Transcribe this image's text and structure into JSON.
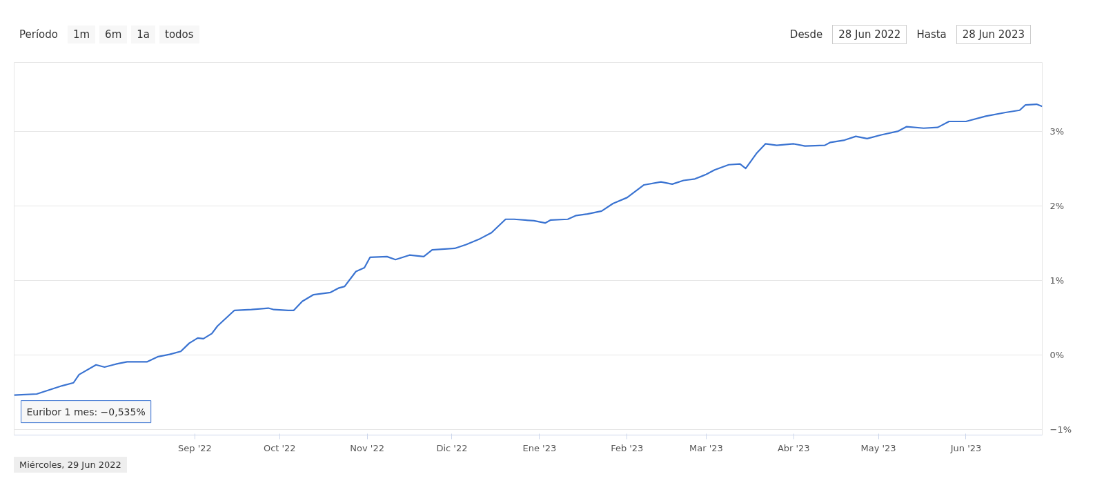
{
  "chart_data": {
    "type": "line",
    "x": [
      "2022-06-29",
      "2022-07-07",
      "2022-07-16",
      "2022-07-20",
      "2022-07-22",
      "2022-07-28",
      "2022-07-31",
      "2022-08-04",
      "2022-08-08",
      "2022-08-15",
      "2022-08-19",
      "2022-08-23",
      "2022-08-27",
      "2022-08-30",
      "2022-09-02",
      "2022-09-04",
      "2022-09-07",
      "2022-09-09",
      "2022-09-15",
      "2022-09-21",
      "2022-09-27",
      "2022-09-29",
      "2022-10-04",
      "2022-10-06",
      "2022-10-09",
      "2022-10-13",
      "2022-10-19",
      "2022-10-22",
      "2022-10-24",
      "2022-10-28",
      "2022-10-31",
      "2022-11-02",
      "2022-11-08",
      "2022-11-11",
      "2022-11-16",
      "2022-11-21",
      "2022-11-24",
      "2022-12-02",
      "2022-12-06",
      "2022-12-11",
      "2022-12-15",
      "2022-12-20",
      "2022-12-23",
      "2022-12-30",
      "2023-01-03",
      "2023-01-05",
      "2023-01-11",
      "2023-01-14",
      "2023-01-18",
      "2023-01-23",
      "2023-01-27",
      "2023-02-01",
      "2023-02-07",
      "2023-02-13",
      "2023-02-17",
      "2023-02-21",
      "2023-02-25",
      "2023-03-01",
      "2023-03-04",
      "2023-03-09",
      "2023-03-13",
      "2023-03-15",
      "2023-03-19",
      "2023-03-22",
      "2023-03-26",
      "2023-04-01",
      "2023-04-05",
      "2023-04-12",
      "2023-04-14",
      "2023-04-19",
      "2023-04-23",
      "2023-04-27",
      "2023-05-02",
      "2023-05-08",
      "2023-05-11",
      "2023-05-17",
      "2023-05-22",
      "2023-05-26",
      "2023-06-01",
      "2023-06-08",
      "2023-06-15",
      "2023-06-20",
      "2023-06-22",
      "2023-06-26",
      "2023-06-28"
    ],
    "series": [
      {
        "color": "#3a73d1",
        "values": [
          -0.535,
          -0.52,
          -0.41,
          -0.37,
          -0.26,
          -0.13,
          -0.16,
          -0.12,
          -0.09,
          -0.09,
          -0.02,
          0.01,
          0.05,
          0.16,
          0.23,
          0.22,
          0.29,
          0.39,
          0.6,
          0.61,
          0.63,
          0.61,
          0.6,
          0.6,
          0.72,
          0.81,
          0.84,
          0.9,
          0.92,
          1.12,
          1.17,
          1.31,
          1.32,
          1.28,
          1.34,
          1.32,
          1.41,
          1.43,
          1.48,
          1.56,
          1.64,
          1.82,
          1.82,
          1.8,
          1.77,
          1.81,
          1.82,
          1.87,
          1.89,
          1.93,
          2.03,
          2.11,
          2.28,
          2.32,
          2.29,
          2.34,
          2.36,
          2.42,
          2.48,
          2.55,
          2.56,
          2.5,
          2.71,
          2.83,
          2.81,
          2.83,
          2.8,
          2.81,
          2.85,
          2.88,
          2.93,
          2.9,
          2.95,
          3.0,
          3.06,
          3.04,
          3.05,
          3.13,
          3.13,
          3.2,
          3.25,
          3.28,
          3.35,
          3.36,
          3.33
        ]
      }
    ],
    "xlim": [
      "2022-06-29",
      "2023-06-28"
    ],
    "xticks": [
      {
        "value": "2022-09-01",
        "label": "Sep '22"
      },
      {
        "value": "2022-10-01",
        "label": "Oct '22"
      },
      {
        "value": "2022-11-01",
        "label": "Nov '22"
      },
      {
        "value": "2022-12-01",
        "label": "Dic '22"
      },
      {
        "value": "2023-01-01",
        "label": "Ene '23"
      },
      {
        "value": "2023-02-01",
        "label": "Feb '23"
      },
      {
        "value": "2023-03-01",
        "label": "Mar '23"
      },
      {
        "value": "2023-04-01",
        "label": "Abr '23"
      },
      {
        "value": "2023-05-01",
        "label": "May '23"
      },
      {
        "value": "2023-06-01",
        "label": "Jun '23"
      }
    ],
    "ylim": [
      -1.07,
      3.92
    ],
    "yticks": [
      {
        "value": -1,
        "label": "−1%"
      },
      {
        "value": 0,
        "label": "0%"
      },
      {
        "value": 1,
        "label": "1%"
      },
      {
        "value": 2,
        "label": "2%"
      },
      {
        "value": 3,
        "label": "3%"
      }
    ],
    "grid": "y",
    "line_style": "solid",
    "marker": "none",
    "annotations": [
      "Período",
      "1m",
      "6m",
      "1a",
      "todos",
      "Desde",
      "28 Jun 2022",
      "Hasta",
      "28 Jun 2023",
      {
        "text": "Euribor 1 mes: −0,535%",
        "x": "2022-06-29",
        "y": -0.535
      },
      "Miércoles, 29 Jun 2022"
    ]
  }
}
